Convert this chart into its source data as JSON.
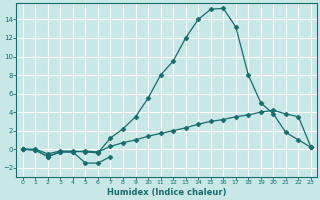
{
  "xlabel": "Humidex (Indice chaleur)",
  "bg_color": "#c8e8e8",
  "grid_color": "#ffffff",
  "line_color": "#1a6b6b",
  "xlim": [
    -0.5,
    23.5
  ],
  "ylim": [
    -3.0,
    15.8
  ],
  "xticks": [
    0,
    1,
    2,
    3,
    4,
    5,
    6,
    7,
    8,
    9,
    10,
    11,
    12,
    13,
    14,
    15,
    16,
    17,
    18,
    19,
    20,
    21,
    22,
    23
  ],
  "yticks": [
    -2,
    0,
    2,
    4,
    6,
    8,
    10,
    12,
    14
  ],
  "line_big_x": [
    0,
    1,
    2,
    3,
    4,
    5,
    6,
    7,
    8,
    9,
    10,
    11,
    12,
    13,
    14,
    15,
    16,
    17,
    18,
    19,
    20,
    21,
    22,
    23
  ],
  "line_big_y": [
    0,
    0,
    -0.5,
    -0.2,
    -0.2,
    -0.3,
    -0.4,
    1.2,
    2.2,
    3.5,
    5.5,
    8.0,
    9.5,
    12.0,
    14.0,
    15.1,
    15.2,
    13.2,
    8.0,
    5.0,
    3.8,
    1.8,
    1.0,
    0.2
  ],
  "line_mid_x": [
    0,
    1,
    2,
    3,
    4,
    5,
    6,
    7,
    8,
    9,
    10,
    11,
    12,
    13,
    14,
    15,
    16,
    17,
    18,
    19,
    20,
    21,
    22,
    23
  ],
  "line_mid_y": [
    0,
    -0.1,
    -0.8,
    -0.3,
    -0.3,
    -0.2,
    -0.3,
    0.3,
    0.7,
    1.0,
    1.4,
    1.7,
    2.0,
    2.3,
    2.7,
    3.0,
    3.2,
    3.5,
    3.7,
    4.0,
    4.2,
    3.8,
    3.5,
    0.2
  ],
  "line_low_x": [
    0,
    1,
    2,
    3,
    4,
    5,
    6,
    7
  ],
  "line_low_y": [
    0,
    -0.1,
    -0.8,
    -0.3,
    -0.3,
    -1.5,
    -1.5,
    -0.8
  ]
}
